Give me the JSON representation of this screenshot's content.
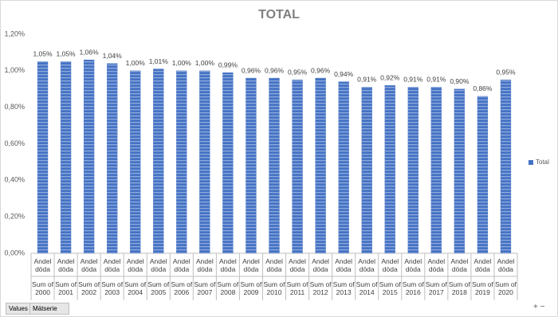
{
  "chart_data": {
    "type": "bar",
    "title": "TOTAL",
    "categories": [
      "Sum of 2000",
      "Sum of 2001",
      "Sum of 2002",
      "Sum of 2003",
      "Sum of 2004",
      "Sum of 2005",
      "Sum of 2006",
      "Sum of 2007",
      "Sum of 2008",
      "Sum of 2009",
      "Sum of 2010",
      "Sum of 2011",
      "Sum of 2012",
      "Sum of 2013",
      "Sum of 2014",
      "Sum of 2015",
      "Sum of 2016",
      "Sum of 2017",
      "Sum of 2018",
      "Sum of 2019",
      "Sum of 2020"
    ],
    "inner_categories": [
      "Andel döda",
      "Andel döda",
      "Andel döda",
      "Andel döda",
      "Andel döda",
      "Andel döda",
      "Andel döda",
      "Andel döda",
      "Andel döda",
      "Andel döda",
      "Andel döda",
      "Andel döda",
      "Andel döda",
      "Andel döda",
      "Andel döda",
      "Andel döda",
      "Andel döda",
      "Andel döda",
      "Andel döda",
      "Andel döda",
      "Andel döda"
    ],
    "series": [
      {
        "name": "Total",
        "color": "#4472c4",
        "values": [
          1.05,
          1.05,
          1.06,
          1.04,
          1.0,
          1.01,
          1.0,
          1.0,
          0.99,
          0.96,
          0.96,
          0.95,
          0.96,
          0.94,
          0.91,
          0.92,
          0.91,
          0.91,
          0.9,
          0.86,
          0.95
        ],
        "value_labels": [
          "1,05%",
          "1,05%",
          "1,06%",
          "1,04%",
          "1,00%",
          "1,01%",
          "1,00%",
          "1,00%",
          "0,99%",
          "0,96%",
          "0,96%",
          "0,95%",
          "0,96%",
          "0,94%",
          "0,91%",
          "0,92%",
          "0,91%",
          "0,91%",
          "0,90%",
          "0,86%",
          "0,95%"
        ]
      }
    ],
    "ylim": [
      0,
      1.2
    ],
    "yticks": [
      {
        "value": 0,
        "label": "0,00%"
      },
      {
        "value": 0.2,
        "label": "0,20%"
      },
      {
        "value": 0.4,
        "label": "0,40%"
      },
      {
        "value": 0.6,
        "label": "0,60%"
      },
      {
        "value": 0.8,
        "label": "0,80%"
      },
      {
        "value": 1.0,
        "label": "1,00%"
      },
      {
        "value": 1.2,
        "label": "1,20%"
      }
    ],
    "grid": false,
    "legend": "right",
    "field_buttons": [
      "Values",
      "Mätserie"
    ]
  }
}
